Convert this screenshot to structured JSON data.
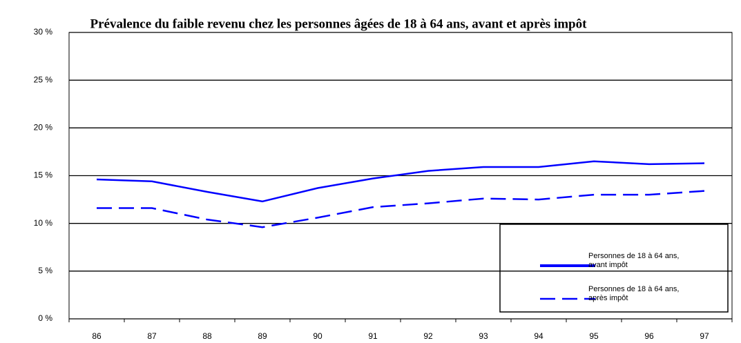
{
  "chart_data": {
    "type": "line",
    "title": "Prévalence du faible revenu chez les personnes âgées de 18 à 64 ans, avant et après impôt",
    "categories": [
      "86",
      "87",
      "88",
      "89",
      "90",
      "91",
      "92",
      "93",
      "94",
      "95",
      "96",
      "97"
    ],
    "series": [
      {
        "name": "Personnes de 18 à 64 ans, avant impôt",
        "color": "#0000ff",
        "dash": false,
        "values": [
          14.6,
          14.4,
          13.3,
          12.3,
          13.7,
          14.7,
          15.5,
          15.9,
          15.9,
          16.5,
          16.2,
          16.3
        ]
      },
      {
        "name": "Personnes de 18 à 64 ans, après impôt",
        "color": "#0000ff",
        "dash": true,
        "values": [
          11.6,
          11.6,
          10.4,
          9.6,
          10.6,
          11.7,
          12.1,
          12.6,
          12.5,
          13.0,
          13.0,
          13.4
        ]
      }
    ],
    "ylim": [
      0,
      30
    ],
    "yticks": [
      {
        "value": 0,
        "label": "0 %"
      },
      {
        "value": 5,
        "label": "5 %"
      },
      {
        "value": 10,
        "label": "10 %"
      },
      {
        "value": 15,
        "label": "15 %"
      },
      {
        "value": 20,
        "label": "20 %"
      },
      {
        "value": 25,
        "label": "25 %"
      },
      {
        "value": 30,
        "label": "30 %"
      }
    ],
    "grid": true
  }
}
